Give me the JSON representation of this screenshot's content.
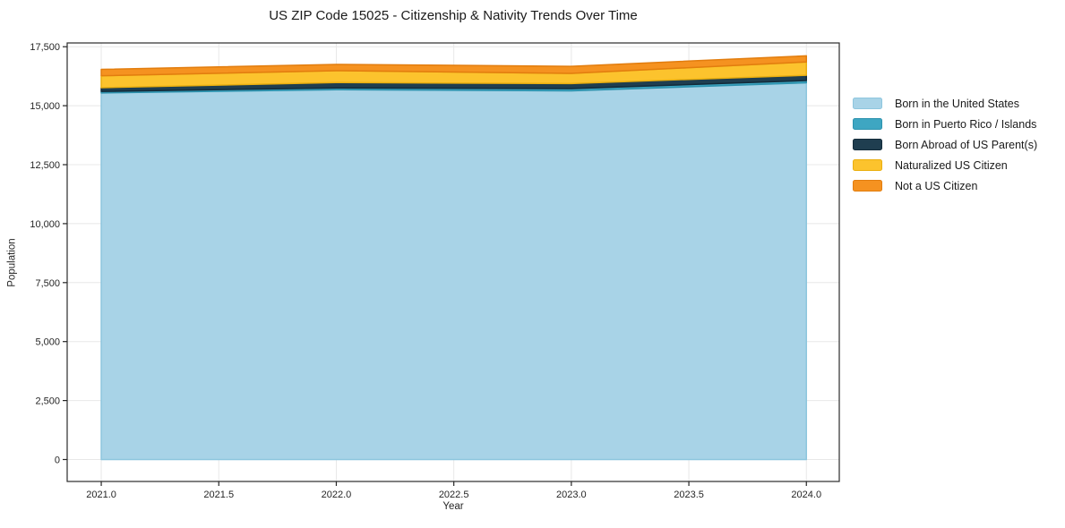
{
  "chart_data": {
    "type": "area",
    "stacked": true,
    "title": "US ZIP Code 15025 - Citizenship & Nativity Trends Over Time",
    "xlabel": "Year",
    "ylabel": "Population",
    "x": [
      2021,
      2022,
      2023,
      2024
    ],
    "series": [
      {
        "name": "Born in the United States",
        "color": "#a8d3e7",
        "edge_color": "#8ec6de",
        "values": [
          15540,
          15680,
          15630,
          15970
        ]
      },
      {
        "name": "Born in Puerto Rico / Islands",
        "color": "#3ea6c2",
        "edge_color": "#2d92ae",
        "values": [
          65,
          75,
          95,
          95
        ]
      },
      {
        "name": "Born Abroad of US Parent(s)",
        "color": "#1f3e50",
        "edge_color": "#132b3a",
        "values": [
          160,
          225,
          215,
          225
        ]
      },
      {
        "name": "Naturalized US Citizen",
        "color": "#fcc32d",
        "edge_color": "#eaaf10",
        "values": [
          505,
          505,
          430,
          565
        ]
      },
      {
        "name": "Not a US Citizen",
        "color": "#f59220",
        "edge_color": "#e27d0e",
        "values": [
          270,
          265,
          300,
          260
        ]
      }
    ],
    "xlim": [
      2020.855,
      2024.14
    ],
    "ylim": [
      -930,
      17660
    ],
    "x_ticks": {
      "values": [
        2021,
        2021.5,
        2022,
        2022.5,
        2023,
        2023.5,
        2024
      ],
      "labels": [
        "2021.0",
        "2021.5",
        "2022.0",
        "2022.5",
        "2023.0",
        "2023.5",
        "2024.0"
      ]
    },
    "y_ticks": {
      "values": [
        0,
        2500,
        5000,
        7500,
        10000,
        12500,
        15000,
        17500
      ],
      "labels": [
        "0",
        "2,500",
        "5,000",
        "7,500",
        "10,000",
        "12,500",
        "15,000",
        "17,500"
      ]
    },
    "grid": true,
    "grid_color": "#e8e8e8",
    "spine_color": "#2b2b2b",
    "tick_color": "#262626",
    "legend_position": "right-outside"
  }
}
